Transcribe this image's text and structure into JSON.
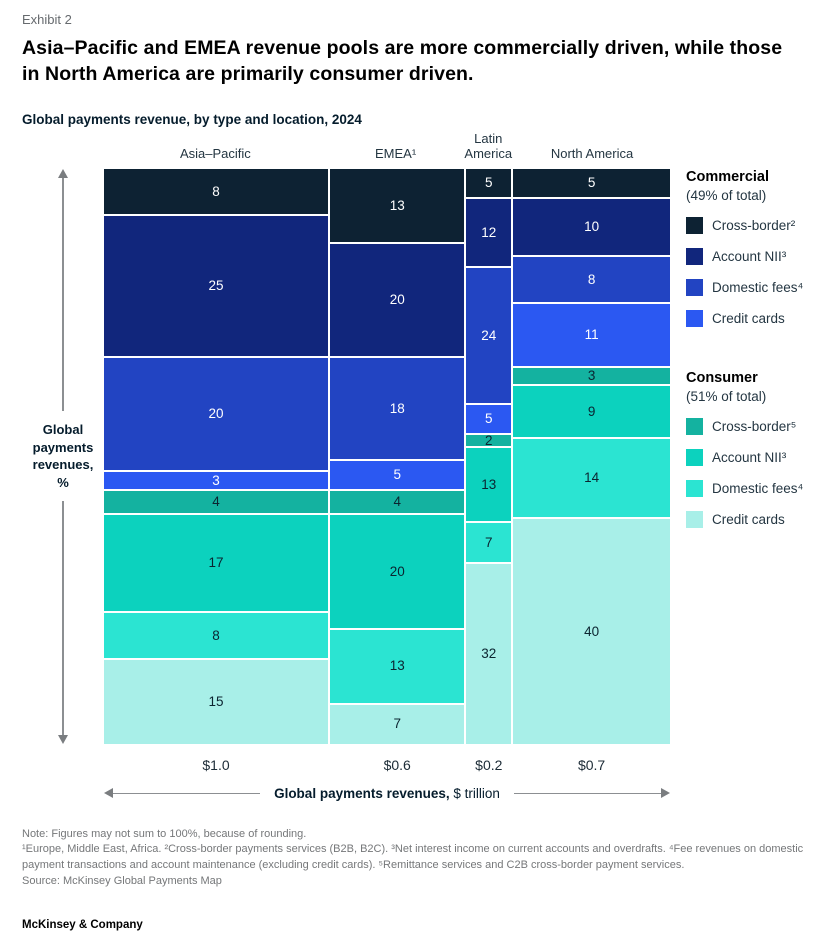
{
  "exhibit_label": "Exhibit 2",
  "title": "Asia–Pacific and EMEA revenue pools are more commercially driven, while those in North America are primarily consumer driven.",
  "subtitle": "Global payments revenue, by type and location, 2024",
  "left_axis": {
    "label": "Global payments revenues, %",
    "label_lines": [
      "Global",
      "payments",
      "revenues,",
      "%"
    ]
  },
  "bottom_axis": {
    "bold_label": "Global payments revenues,",
    "regular_label": "$ trillion"
  },
  "legend": {
    "commercial": {
      "title": "Commercial",
      "subtitle": "(49% of total)",
      "items": [
        {
          "label": "Cross-border²",
          "color": "#0D2233"
        },
        {
          "label": "Account NII³",
          "color": "#11267C"
        },
        {
          "label": "Domestic fees⁴",
          "color": "#2244C2"
        },
        {
          "label": "Credit cards",
          "color": "#2B58F2"
        }
      ]
    },
    "consumer": {
      "title": "Consumer",
      "subtitle": "(51% of total)",
      "items": [
        {
          "label": "Cross-border⁵",
          "color": "#14B2A0"
        },
        {
          "label": "Account NII³",
          "color": "#0CD2BE"
        },
        {
          "label": "Domestic fees⁴",
          "color": "#2BE4D2"
        },
        {
          "label": "Credit cards",
          "color": "#A8EFE8"
        }
      ]
    }
  },
  "chart_data": {
    "type": "marimekko-stacked-bar",
    "title": "Global payments revenue, by type and location, 2024",
    "ylabel": "Global payments revenues, %",
    "xlabel": "Global payments revenues, $ trillion",
    "ylim": [
      0,
      100
    ],
    "grid": false,
    "legend_position": "right",
    "segments": [
      {
        "name": "Commercial cross-border",
        "color": "#0D2233",
        "label_color": "#ffffff"
      },
      {
        "name": "Commercial account NII",
        "color": "#11267C",
        "label_color": "#ffffff"
      },
      {
        "name": "Commercial domestic fees",
        "color": "#2244C2",
        "label_color": "#ffffff"
      },
      {
        "name": "Commercial credit cards",
        "color": "#2B58F2",
        "label_color": "#ffffff"
      },
      {
        "name": "Consumer cross-border",
        "color": "#14B2A0",
        "label_color": "#0b2430"
      },
      {
        "name": "Consumer account NII",
        "color": "#0CD2BE",
        "label_color": "#0b2430"
      },
      {
        "name": "Consumer domestic fees",
        "color": "#2BE4D2",
        "label_color": "#0b2430"
      },
      {
        "name": "Consumer credit cards",
        "color": "#A8EFE8",
        "label_color": "#0b2430"
      }
    ],
    "columns": [
      {
        "name": "Asia–Pacific",
        "revenue_trillions": 1.0,
        "revenue_label": "$1.0",
        "values": [
          8,
          25,
          20,
          3,
          4,
          17,
          8,
          15
        ]
      },
      {
        "name": "EMEA¹",
        "revenue_trillions": 0.6,
        "revenue_label": "$0.6",
        "values": [
          13,
          20,
          18,
          5,
          4,
          20,
          13,
          7
        ]
      },
      {
        "name": "Latin America",
        "revenue_trillions": 0.2,
        "revenue_label": "$0.2",
        "values": [
          5,
          12,
          24,
          5,
          2,
          13,
          7,
          32
        ]
      },
      {
        "name": "North America",
        "revenue_trillions": 0.7,
        "revenue_label": "$0.7",
        "values": [
          5,
          10,
          8,
          11,
          3,
          9,
          14,
          40
        ]
      }
    ]
  },
  "notes": {
    "note": "Note: Figures may not sum to 100%, because of rounding.",
    "footnotes": "¹Europe, Middle East, Africa. ²Cross-border payments services (B2B, B2C). ³Net interest income on current accounts and overdrafts. ⁴Fee revenues on domestic payment transactions and account maintenance (excluding credit cards). ⁵Remittance services and C2B cross-border payment services.",
    "source": "Source: McKinsey Global Payments Map"
  },
  "footer": {
    "brand": "McKinsey & Company"
  }
}
